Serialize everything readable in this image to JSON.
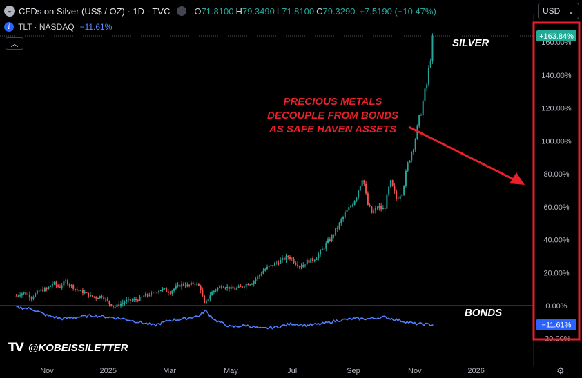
{
  "header": {
    "symbol_title": "CFDs on Silver (US$ / OZ) · 1D · TVC",
    "open_label": "O",
    "open": "71.8100",
    "high_label": "H",
    "high": "79.3490",
    "low_label": "L",
    "low": "71.8100",
    "close_label": "C",
    "close": "79.3290",
    "change": "+7.5190 (+10.47%)"
  },
  "compare": {
    "symbol": "TLT · NASDAQ",
    "change": "−11.61%"
  },
  "currency": {
    "selected": "USD"
  },
  "annotations": {
    "silver": "SILVER",
    "bonds": "BONDS",
    "headline": [
      "PRECIOUS METALS",
      "DECOUPLE FROM BONDS",
      "AS SAFE HAVEN ASSETS"
    ]
  },
  "watermark": {
    "handle": "@KOBEISSILETTER",
    "logo": "TV"
  },
  "colors": {
    "up": "#26a69a",
    "down": "#ef5350",
    "bonds": "#4f7fff",
    "annotation": "#e8202a",
    "silver_badge": "#22ab94",
    "bonds_badge": "#2962ff"
  },
  "chart_data": {
    "type": "line",
    "yunit": "%",
    "ylim": [
      -20,
      165
    ],
    "yticks": [
      -20,
      0,
      20,
      40,
      60,
      80,
      100,
      120,
      140,
      160
    ],
    "ytick_labels": [
      "-20.00%",
      "0.00%",
      "20.00%",
      "40.00%",
      "60.00%",
      "80.00%",
      "100.00%",
      "120.00%",
      "140.00%",
      "160.00%"
    ],
    "x_labels": [
      "Nov",
      "2025",
      "Mar",
      "May",
      "Jul",
      "Sep",
      "Nov",
      "2026"
    ],
    "x_label_months": [
      0,
      2,
      4,
      6,
      8,
      10,
      12,
      14
    ],
    "series": [
      {
        "name": "Silver",
        "style": "candlestick",
        "last_label": "+163.84%",
        "points": [
          [
            -1.0,
            6
          ],
          [
            -0.75,
            8
          ],
          [
            -0.5,
            5
          ],
          [
            -0.25,
            9
          ],
          [
            0.0,
            10
          ],
          [
            0.2,
            14
          ],
          [
            0.4,
            11
          ],
          [
            0.6,
            15
          ],
          [
            0.8,
            12
          ],
          [
            1.0,
            9
          ],
          [
            1.2,
            8
          ],
          [
            1.4,
            6
          ],
          [
            1.6,
            5
          ],
          [
            1.8,
            6
          ],
          [
            2.0,
            2
          ],
          [
            2.2,
            -1
          ],
          [
            2.4,
            1
          ],
          [
            2.6,
            3
          ],
          [
            2.8,
            3
          ],
          [
            3.0,
            4
          ],
          [
            3.2,
            6
          ],
          [
            3.4,
            7
          ],
          [
            3.6,
            9
          ],
          [
            3.8,
            10
          ],
          [
            4.0,
            8
          ],
          [
            4.2,
            11
          ],
          [
            4.4,
            13
          ],
          [
            4.6,
            12
          ],
          [
            4.8,
            14
          ],
          [
            5.0,
            11
          ],
          [
            5.15,
            0
          ],
          [
            5.3,
            6
          ],
          [
            5.5,
            10
          ],
          [
            5.7,
            12
          ],
          [
            5.9,
            11
          ],
          [
            6.1,
            10
          ],
          [
            6.3,
            11
          ],
          [
            6.5,
            13
          ],
          [
            6.7,
            14
          ],
          [
            6.9,
            18
          ],
          [
            7.1,
            22
          ],
          [
            7.3,
            24
          ],
          [
            7.5,
            26
          ],
          [
            7.7,
            28
          ],
          [
            7.9,
            30
          ],
          [
            8.1,
            26
          ],
          [
            8.3,
            24
          ],
          [
            8.5,
            27
          ],
          [
            8.7,
            28
          ],
          [
            8.9,
            32
          ],
          [
            9.1,
            37
          ],
          [
            9.3,
            42
          ],
          [
            9.5,
            48
          ],
          [
            9.7,
            55
          ],
          [
            9.9,
            60
          ],
          [
            10.1,
            67
          ],
          [
            10.3,
            79
          ],
          [
            10.45,
            62
          ],
          [
            10.6,
            56
          ],
          [
            10.8,
            60
          ],
          [
            11.0,
            58
          ],
          [
            11.2,
            75
          ],
          [
            11.4,
            65
          ],
          [
            11.6,
            70
          ],
          [
            11.8,
            88
          ],
          [
            12.0,
            100
          ],
          [
            12.2,
            118
          ],
          [
            12.4,
            135
          ],
          [
            12.6,
            163.84
          ]
        ]
      },
      {
        "name": "TLT",
        "style": "line",
        "last_label": "−11.61%",
        "points": [
          [
            -1.0,
            -1
          ],
          [
            -0.5,
            -2
          ],
          [
            0.0,
            -6
          ],
          [
            0.5,
            -8
          ],
          [
            1.0,
            -7
          ],
          [
            1.5,
            -6
          ],
          [
            2.0,
            -7
          ],
          [
            2.5,
            -8
          ],
          [
            3.0,
            -10
          ],
          [
            3.5,
            -12
          ],
          [
            4.0,
            -9
          ],
          [
            4.5,
            -8
          ],
          [
            5.0,
            -6
          ],
          [
            5.15,
            -3
          ],
          [
            5.5,
            -9
          ],
          [
            6.0,
            -13
          ],
          [
            6.5,
            -12
          ],
          [
            7.0,
            -14
          ],
          [
            7.5,
            -13
          ],
          [
            8.0,
            -11
          ],
          [
            8.5,
            -12
          ],
          [
            9.0,
            -11
          ],
          [
            9.5,
            -9
          ],
          [
            10.0,
            -8
          ],
          [
            10.5,
            -8
          ],
          [
            11.0,
            -7
          ],
          [
            11.5,
            -9
          ],
          [
            12.0,
            -11
          ],
          [
            12.6,
            -11.61
          ]
        ]
      }
    ]
  }
}
